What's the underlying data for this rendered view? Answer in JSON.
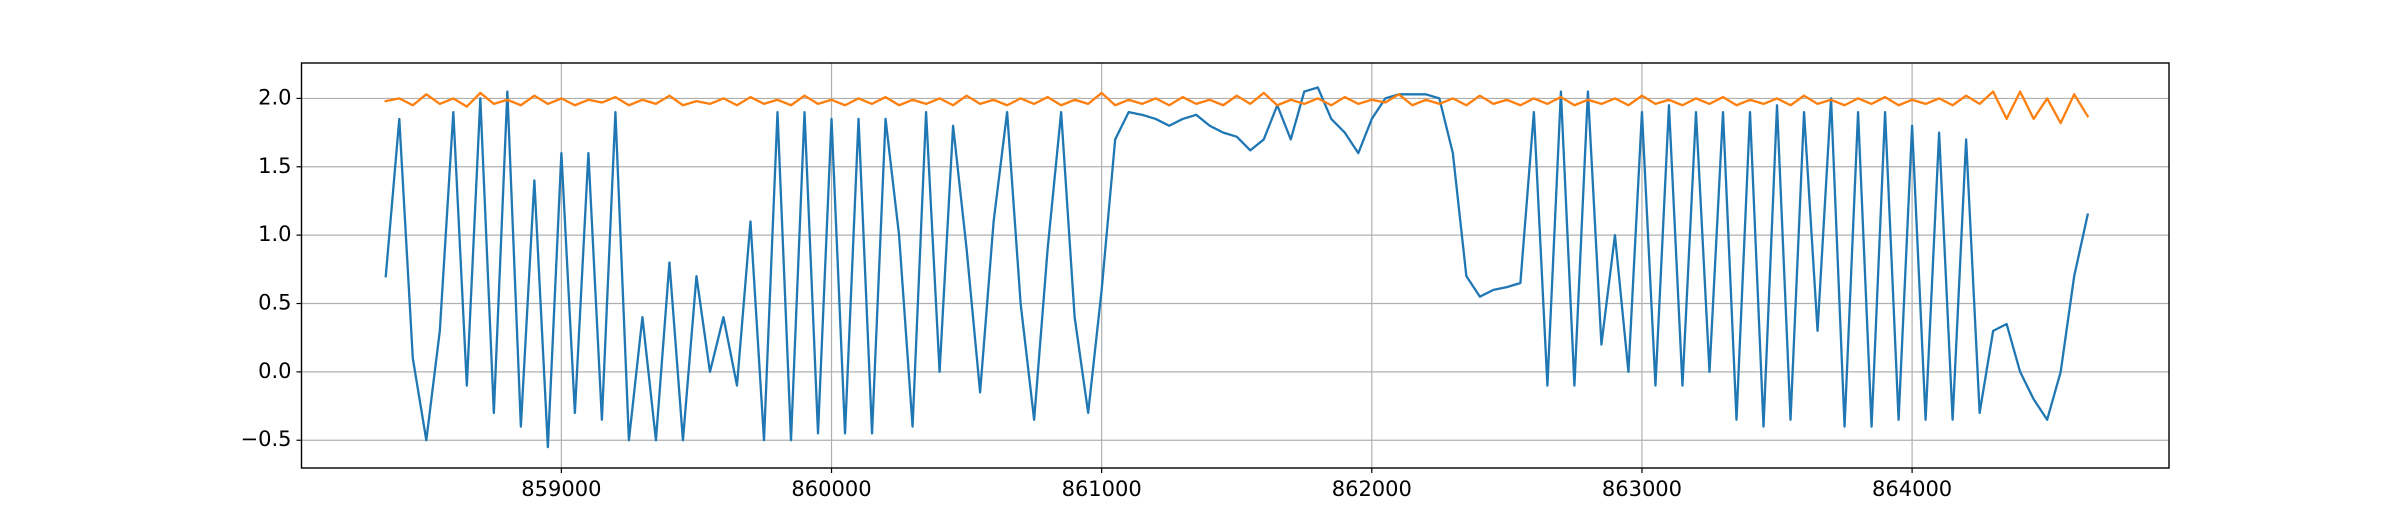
{
  "chart_data": {
    "type": "line",
    "x": [
      858350,
      858400,
      858450,
      858500,
      858550,
      858600,
      858650,
      858700,
      858750,
      858800,
      858850,
      858900,
      858950,
      859000,
      859050,
      859100,
      859150,
      859200,
      859250,
      859300,
      859350,
      859400,
      859450,
      859500,
      859550,
      859600,
      859650,
      859700,
      859750,
      859800,
      859850,
      859900,
      859950,
      860000,
      860050,
      860100,
      860150,
      860200,
      860250,
      860300,
      860350,
      860400,
      860450,
      860500,
      860550,
      860600,
      860650,
      860700,
      860750,
      860800,
      860850,
      860900,
      860950,
      861000,
      861050,
      861100,
      861150,
      861200,
      861250,
      861300,
      861350,
      861400,
      861450,
      861500,
      861550,
      861600,
      861650,
      861700,
      861750,
      861800,
      861850,
      861900,
      861950,
      862000,
      862050,
      862100,
      862150,
      862200,
      862250,
      862300,
      862350,
      862400,
      862450,
      862500,
      862550,
      862600,
      862650,
      862700,
      862750,
      862800,
      862850,
      862900,
      862950,
      863000,
      863050,
      863100,
      863150,
      863200,
      863250,
      863300,
      863350,
      863400,
      863450,
      863500,
      863550,
      863600,
      863650,
      863700,
      863750,
      863800,
      863850,
      863900,
      863950,
      864000,
      864050,
      864100,
      864150,
      864200,
      864250,
      864300,
      864350,
      864400,
      864450,
      864500,
      864550,
      864600,
      864650
    ],
    "series": [
      {
        "color": "#1f77b4",
        "values": [
          0.7,
          1.85,
          0.1,
          -0.5,
          0.3,
          1.9,
          -0.1,
          2.0,
          -0.3,
          2.05,
          -0.4,
          1.4,
          -0.55,
          1.6,
          -0.3,
          1.6,
          -0.35,
          1.9,
          -0.5,
          0.4,
          -0.5,
          0.8,
          -0.5,
          0.7,
          0.0,
          0.4,
          -0.1,
          1.1,
          -0.5,
          1.9,
          -0.5,
          1.9,
          -0.45,
          1.85,
          -0.45,
          1.85,
          -0.45,
          1.85,
          1.0,
          -0.4,
          1.9,
          0.0,
          1.8,
          0.9,
          -0.15,
          1.1,
          1.9,
          0.5,
          -0.35,
          0.9,
          1.9,
          0.4,
          -0.3,
          0.6,
          1.7,
          1.9,
          1.88,
          1.85,
          1.8,
          1.85,
          1.88,
          1.8,
          1.75,
          1.72,
          1.62,
          1.7,
          1.95,
          1.7,
          2.05,
          2.08,
          1.85,
          1.75,
          1.6,
          1.85,
          2.0,
          2.03,
          2.03,
          2.03,
          2.0,
          1.6,
          0.7,
          0.55,
          0.6,
          0.62,
          0.65,
          1.9,
          -0.1,
          2.05,
          -0.1,
          2.05,
          0.2,
          1.0,
          0.0,
          1.9,
          -0.1,
          1.95,
          -0.1,
          1.9,
          0.0,
          1.9,
          -0.35,
          1.9,
          -0.4,
          1.95,
          -0.35,
          1.9,
          0.3,
          2.0,
          -0.4,
          1.9,
          -0.4,
          1.9,
          -0.35,
          1.8,
          -0.35,
          1.75,
          -0.35,
          1.7,
          -0.3,
          0.3,
          0.35,
          0.0,
          -0.2,
          -0.35,
          0.0,
          0.7,
          1.15
        ]
      },
      {
        "color": "#ff7f0e",
        "values": [
          1.98,
          2.0,
          1.95,
          2.03,
          1.96,
          2.0,
          1.94,
          2.04,
          1.96,
          1.99,
          1.95,
          2.02,
          1.96,
          2.0,
          1.95,
          1.99,
          1.97,
          2.01,
          1.95,
          1.99,
          1.96,
          2.02,
          1.95,
          1.98,
          1.96,
          2.0,
          1.95,
          2.01,
          1.96,
          1.99,
          1.95,
          2.02,
          1.96,
          1.99,
          1.95,
          2.0,
          1.96,
          2.01,
          1.95,
          1.99,
          1.96,
          2.0,
          1.95,
          2.02,
          1.96,
          1.99,
          1.95,
          2.0,
          1.96,
          2.01,
          1.95,
          1.99,
          1.96,
          2.04,
          1.95,
          1.99,
          1.96,
          2.0,
          1.95,
          2.01,
          1.96,
          1.99,
          1.95,
          2.02,
          1.96,
          2.04,
          1.95,
          1.99,
          1.96,
          2.0,
          1.95,
          2.01,
          1.96,
          1.99,
          1.97,
          2.03,
          1.95,
          1.99,
          1.96,
          2.0,
          1.95,
          2.02,
          1.96,
          1.99,
          1.95,
          2.0,
          1.96,
          2.01,
          1.95,
          1.99,
          1.96,
          2.0,
          1.95,
          2.02,
          1.96,
          1.99,
          1.95,
          2.0,
          1.96,
          2.01,
          1.95,
          1.99,
          1.96,
          2.0,
          1.95,
          2.02,
          1.96,
          1.99,
          1.95,
          2.0,
          1.96,
          2.01,
          1.95,
          1.99,
          1.96,
          2.0,
          1.95,
          2.02,
          1.96,
          2.05,
          1.85,
          2.05,
          1.85,
          2.0,
          1.82,
          2.03,
          1.87
        ]
      }
    ],
    "xlim": [
      858038,
      864951
    ],
    "ylim": [
      -0.703,
      2.259
    ],
    "xticks": [
      859000,
      860000,
      861000,
      862000,
      863000,
      864000
    ],
    "yticks": [
      {
        "value": -0.5,
        "label": "−0.5"
      },
      {
        "value": 0,
        "label": "0.0"
      },
      0.5,
      {
        "value": 1,
        "label": "1.0"
      },
      1.5,
      {
        "value": 2,
        "label": "2.0"
      }
    ],
    "grid": true
  }
}
